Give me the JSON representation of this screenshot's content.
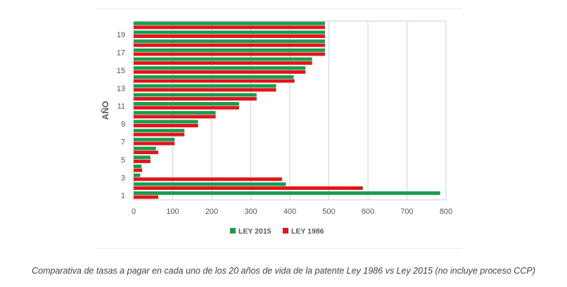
{
  "caption": "Comparativa de tasas a pagar en cada uno de los 20 años de vida de la patente Ley 1986 vs Ley 2015 (no incluye proceso CCP)",
  "colors": {
    "ley2015": "#1a9c4e",
    "ley1986": "#e3141b",
    "grid": "#c5d3df",
    "axis": "#555555"
  },
  "chart_data": {
    "type": "bar",
    "orientation": "horizontal",
    "title": "",
    "xlabel": "",
    "ylabel": "AÑO",
    "xlim": [
      0,
      800
    ],
    "xticks": [
      0,
      100,
      200,
      300,
      400,
      500,
      600,
      700,
      800
    ],
    "categories": [
      "1",
      "2",
      "3",
      "4",
      "5",
      "6",
      "7",
      "8",
      "9",
      "10",
      "11",
      "12",
      "13",
      "14",
      "15",
      "16",
      "17",
      "18",
      "19",
      "20"
    ],
    "y_tick_labels": [
      "1",
      "3",
      "5",
      "7",
      "9",
      "11",
      "13",
      "15",
      "17",
      "19"
    ],
    "legend_position": "bottom",
    "series": [
      {
        "name": "LEY 2015",
        "color": "#1a9c4e",
        "values": [
          785,
          390,
          17,
          20,
          43,
          57,
          105,
          130,
          165,
          210,
          270,
          315,
          365,
          410,
          440,
          457,
          490,
          490,
          490,
          490
        ]
      },
      {
        "name": "LEY 1986",
        "color": "#e3141b",
        "values": [
          63,
          587,
          380,
          22,
          43,
          63,
          105,
          130,
          165,
          210,
          270,
          315,
          365,
          412,
          440,
          457,
          490,
          490,
          490,
          490
        ]
      }
    ]
  }
}
